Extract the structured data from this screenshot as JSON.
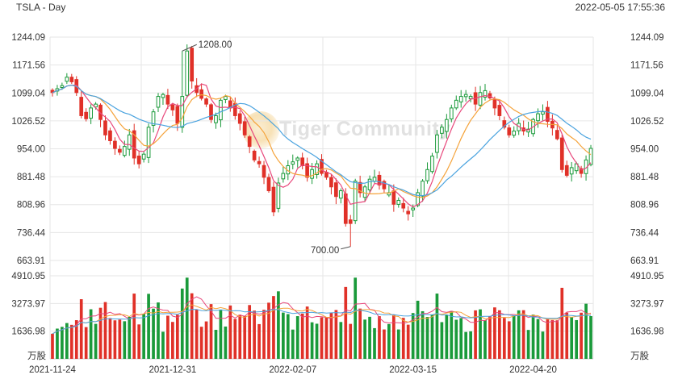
{
  "header": {
    "symbol": "TSLA - Day",
    "timestamp": "2022-05-05 17:55:36"
  },
  "watermark": {
    "text": "Tiger Community"
  },
  "colors": {
    "up": "#1a9a3a",
    "down": "#e03128",
    "ma5": "#e8477b",
    "ma10": "#f5a33a",
    "ma20": "#4aa3df",
    "grid": "#e6e6e6",
    "text": "#333333"
  },
  "chart_data": {
    "type": "candlestick",
    "price_axis": {
      "ticks": [
        "1244.09",
        "1171.56",
        "1099.04",
        "1026.52",
        "954.00",
        "881.48",
        "808.96",
        "736.44",
        "663.91"
      ],
      "range": [
        663.91,
        1244.09
      ]
    },
    "volume_axis": {
      "ticks": [
        "4910.95",
        "3273.97",
        "1636.98"
      ],
      "max": 4910.95,
      "unit": "万股"
    },
    "x_ticks": [
      {
        "label": "2021-11-24",
        "index": 0
      },
      {
        "label": "2021-12-31",
        "index": 25
      },
      {
        "label": "2022-02-07",
        "index": 50
      },
      {
        "label": "2022-03-15",
        "index": 75
      },
      {
        "label": "2022-04-20",
        "index": 100
      }
    ],
    "annotations": [
      {
        "label": "1208.00",
        "index": 27,
        "value": 1208.0,
        "position": "high"
      },
      {
        "label": "700.00",
        "index": 62,
        "value": 700.0,
        "position": "low"
      }
    ],
    "close": [
      1100,
      1110,
      1118,
      1140,
      1128,
      1100,
      1040,
      1032,
      1060,
      1070,
      1030,
      990,
      975,
      955,
      945,
      960,
      990,
      930,
      915,
      940,
      1010,
      1050,
      1090,
      1095,
      1070,
      1055,
      1020,
      1090,
      1208,
      1130,
      1100,
      1085,
      1070,
      1030,
      1040,
      1080,
      1090,
      1060,
      1040,
      1020,
      990,
      960,
      925,
      915,
      880,
      845,
      790,
      865,
      890,
      910,
      920,
      930,
      910,
      880,
      900,
      915,
      890,
      880,
      855,
      830,
      845,
      760,
      760,
      870,
      840,
      855,
      875,
      880,
      860,
      850,
      840,
      810,
      820,
      800,
      785,
      800,
      840,
      870,
      900,
      935,
      990,
      1010,
      1030,
      1060,
      1080,
      1090,
      1095,
      1090,
      1070,
      1100,
      1105,
      1086,
      1060,
      1040,
      1010,
      990,
      1000,
      1020,
      1000,
      1005,
      1030,
      1045,
      1050,
      1025,
      1008,
      980,
      900,
      885,
      905,
      915,
      890,
      925,
      955
    ]
  }
}
